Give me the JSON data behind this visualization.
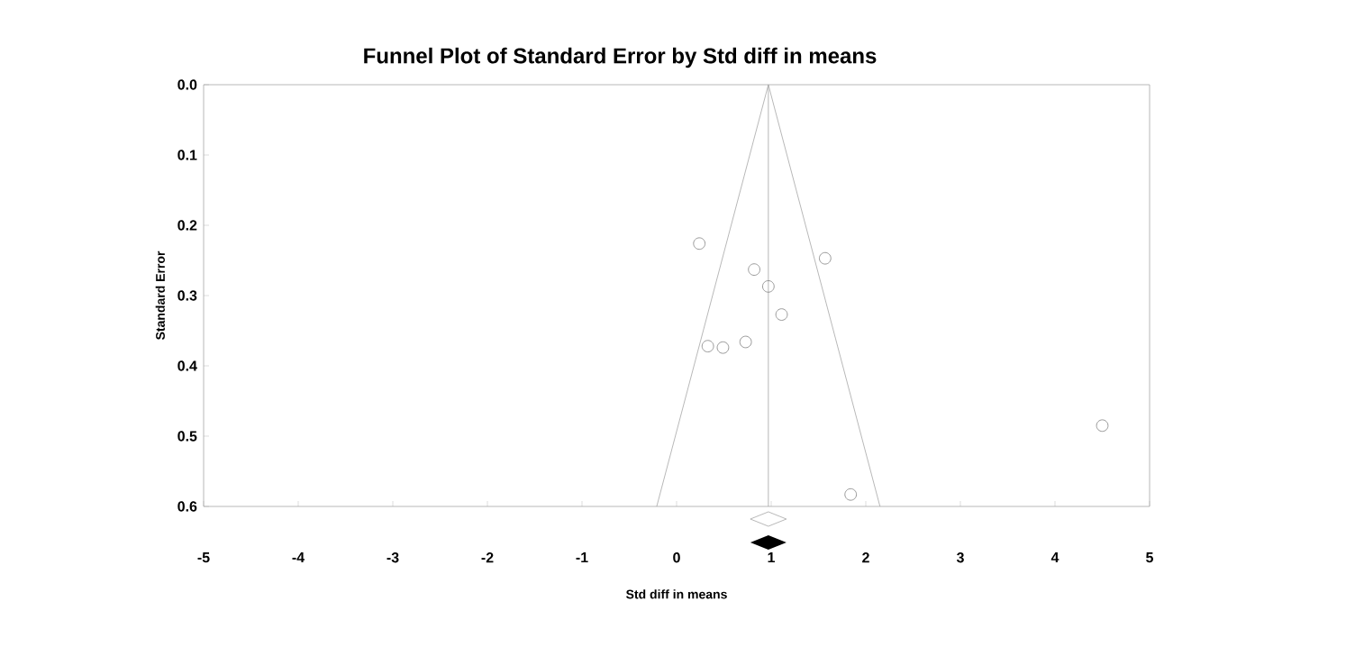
{
  "chart_data": {
    "type": "scatter",
    "title": "Funnel Plot of Standard Error by Std diff in means",
    "xlabel": "Std diff in means",
    "ylabel": "Standard Error",
    "xlim": [
      -5,
      5
    ],
    "xticks": [
      -5,
      -4,
      -3,
      -2,
      -1,
      0,
      1,
      2,
      3,
      4,
      5
    ],
    "ylim": [
      0.6,
      0.0
    ],
    "yticks": [
      {
        "value": 0,
        "label": "0.0"
      },
      {
        "value": 0.1,
        "label": "0.1"
      },
      {
        "value": 0.2,
        "label": "0.2"
      },
      {
        "value": 0.3,
        "label": "0.3"
      },
      {
        "value": 0.4,
        "label": "0.4"
      },
      {
        "value": 0.5,
        "label": "0.5"
      },
      {
        "value": 0.6,
        "label": "0.6"
      }
    ],
    "ref_lines": [
      {
        "axis": "x",
        "value": 0.97,
        "color": "#a6a6a6"
      }
    ],
    "series": [
      {
        "type": "line",
        "color": "#a6a6a6",
        "x": [
          0.97,
          -0.21
        ],
        "values": [
          0.0,
          0.6
        ]
      },
      {
        "type": "line",
        "color": "#a6a6a6",
        "x": [
          0.97,
          2.15
        ],
        "values": [
          0.0,
          0.6
        ]
      },
      {
        "marker": "circle",
        "color": "#7f7f7f",
        "x": [
          0.24,
          1.57,
          0.82,
          0.97,
          1.11,
          0.73,
          0.49,
          0.33,
          1.84,
          4.5
        ],
        "values": [
          0.226,
          0.247,
          0.263,
          0.287,
          0.327,
          0.366,
          0.374,
          0.372,
          0.583,
          0.485
        ]
      }
    ]
  }
}
